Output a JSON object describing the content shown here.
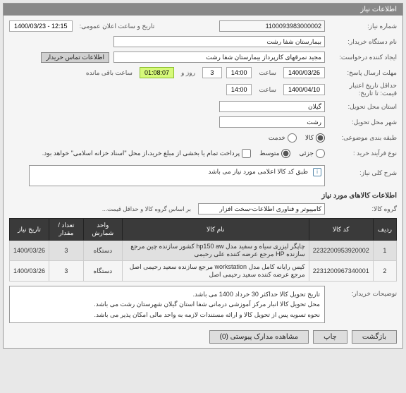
{
  "panel": {
    "title": "اطلاعات نیاز"
  },
  "labels": {
    "need_number": "شماره نیاز:",
    "org_name": "نام دستگاه خریدار:",
    "creator": "ایجاد کننده درخواست:",
    "deadline": "مهلت ارسال پاسخ:",
    "min_validity": "حداقل تاریخ اعتبار قیمت: تا تاریخ:",
    "province": "استان محل تحویل:",
    "city": "شهر محل تحویل:",
    "category": "طبقه بندی موضوعی:",
    "process": "نوع فرآیند خرید :",
    "overall_desc": "شرح کلی نیاز:",
    "items_section": "اطلاعات کالاهای مورد نیاز",
    "group": "گروه کالا:",
    "buyer_notes": "توضیحات خریدار:",
    "announce_datetime": "تاریخ و ساعت اعلان عمومی:",
    "contact_link": "اطلاعات تماس خریدار",
    "hour": "ساعت",
    "day_and": "روز و",
    "remaining": "ساعت باقی مانده",
    "goods": "کالا",
    "service": "خدمت",
    "low": "جزئی",
    "medium": "متوسط",
    "partial_pay": "پرداخت تمام یا بخشی از مبلغ خرید،از محل \"اسناد خزانه اسلامی\" خواهد بود.",
    "group_hint": "بر اساس گروه کالا و حداقل قیمت..."
  },
  "values": {
    "need_number": "1100093983000002",
    "announce_datetime": "1400/03/23 - 12:15",
    "org_name": "بیمارستان شفا رشت",
    "creator": "مجید نمرقهای کارپرداز بیمارستان شفا رشت",
    "deadline_date": "1400/03/26",
    "deadline_time": "14:00",
    "remaining_days": "3",
    "remaining_time": "01:08:07",
    "validity_date": "1400/04/10",
    "validity_time": "14:00",
    "province": "گیلان",
    "city": "رشت",
    "overall_desc": "طبق کد کالا اعلامی مورد نیاز می باشد",
    "group": "کامپیوتر و فناوری اطلاعات-سخت افزار",
    "notes_line1": "تاریخ تحویل کالا حداکثر 30 خرداد 1400 می باشد.",
    "notes_line2": "محل تحویل کالا انبار مرکز آموزشی درمانی شفا استان گیلان شهرستان رشت می باشد.",
    "notes_line3": "نحوه تسویه پس از تحویل کالا و ارائه مستندات لازمه به واحد مالی امکان پذیر می باشد."
  },
  "table": {
    "columns": [
      "ردیف",
      "کد کالا",
      "نام کالا",
      "واحد شمارش",
      "تعداد / مقدار",
      "تاریخ نیاز"
    ],
    "rows": [
      [
        "1",
        "2232200953920002",
        "چاپگر لیزری سیاه و سفید مدل hp150 aw کشور سازنده چین مرجع سازنده HP مرجع عرضه کننده علی رحیمی",
        "دستگاه",
        "3",
        "1400/03/26"
      ],
      [
        "2",
        "2231200967340001",
        "کیس رایانه کامل مدل workstation مرجع سازنده سعید رحیمی اصل مرجع عرضه کننده سعید رحیمی اصل",
        "دستگاه",
        "3",
        "1400/03/26"
      ]
    ]
  },
  "buttons": {
    "back": "بازگشت",
    "print": "چاپ",
    "attachments": "مشاهده مدارک پیوستی  (0)"
  },
  "category": {
    "goods_checked": true,
    "service_checked": false
  },
  "process": {
    "selected": "medium"
  }
}
